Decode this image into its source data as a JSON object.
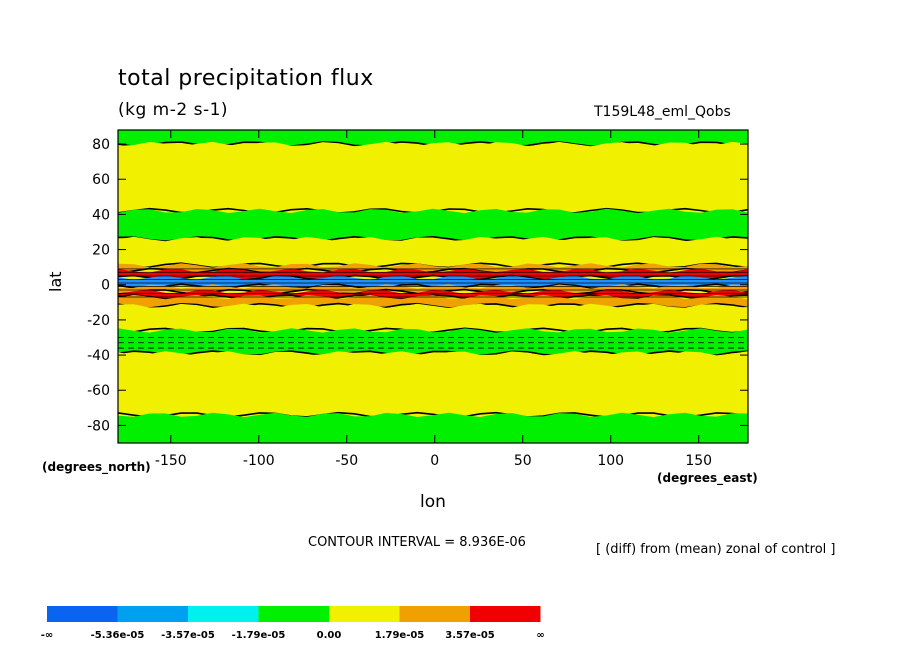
{
  "chart_data": {
    "type": "contour",
    "title": "total precipitation flux",
    "units": "(kg m-2 s-1)",
    "run_label": "T159L48_eml_Qobs",
    "xlabel": "lon",
    "ylabel": "lat",
    "x_unit_label": "(degrees_east)",
    "y_unit_label": "(degrees_north)",
    "xlim": [
      -180,
      178
    ],
    "ylim": [
      -90,
      88
    ],
    "xticks": [
      -150,
      -100,
      -50,
      0,
      50,
      100,
      150
    ],
    "yticks": [
      80,
      60,
      40,
      20,
      0,
      -20,
      -40,
      -60,
      -80
    ],
    "contour_interval_text": "CONTOUR INTERVAL = 8.936E-06",
    "note": "[ (diff) from (mean) zonal of control ]",
    "bands": [
      {
        "lat_from": 88,
        "lat_to": 80,
        "level": "green"
      },
      {
        "lat_from": 80,
        "lat_to": 42,
        "level": "yellow"
      },
      {
        "lat_from": 42,
        "lat_to": 26,
        "level": "green"
      },
      {
        "lat_from": 26,
        "lat_to": 11,
        "level": "yellow"
      },
      {
        "lat_from": 11,
        "lat_to": 8,
        "level": "orange"
      },
      {
        "lat_from": 8,
        "lat_to": 4,
        "level": "red"
      },
      {
        "lat_from": 4,
        "lat_to": -1,
        "level": "blue"
      },
      {
        "lat_from": -1,
        "lat_to": -4,
        "level": "orange"
      },
      {
        "lat_from": -4,
        "lat_to": -7,
        "level": "red"
      },
      {
        "lat_from": -7,
        "lat_to": -12,
        "level": "orange"
      },
      {
        "lat_from": -12,
        "lat_to": -26,
        "level": "yellow"
      },
      {
        "lat_from": -26,
        "lat_to": -39,
        "level": "green"
      },
      {
        "lat_from": -39,
        "lat_to": -74,
        "level": "yellow"
      },
      {
        "lat_from": -74,
        "lat_to": -90,
        "level": "green"
      }
    ],
    "colorbar": {
      "colors": [
        "#0a64f0",
        "#00a0f0",
        "#00f0f0",
        "#00f000",
        "#f0f000",
        "#f0a000",
        "#f00000"
      ],
      "labels": [
        "-∞",
        "-5.36e-05",
        "-3.57e-05",
        "-1.79e-05",
        "0.00",
        "1.79e-05",
        "3.57e-05",
        "∞"
      ]
    },
    "level_colors": {
      "blue": "#1e90ff",
      "green": "#00f000",
      "yellow": "#f0f000",
      "orange": "#f0a000",
      "red": "#f00000"
    }
  }
}
